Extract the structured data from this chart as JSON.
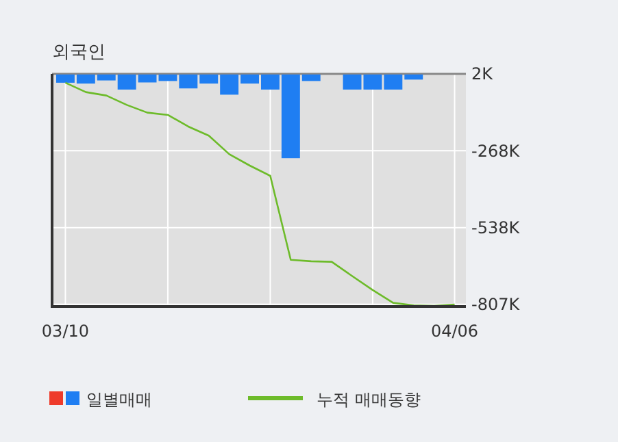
{
  "chart_data": {
    "type": "bar",
    "title": "외국인",
    "categories": [
      "03/10",
      null,
      null,
      null,
      null,
      null,
      null,
      null,
      null,
      null,
      null,
      null,
      null,
      null,
      null,
      null,
      null,
      null,
      null,
      "04/06"
    ],
    "series": [
      {
        "name": "일별매매",
        "color": "#1f7ef2",
        "values": [
          -29,
          -32,
          -21,
          -53,
          -28,
          -23,
          -49,
          -32,
          -71,
          -32,
          -53,
          -294,
          -23,
          0,
          -53,
          -53,
          -53,
          -18,
          0,
          0
        ]
      },
      {
        "name": "누적 매매동향",
        "type": "line",
        "color": "#6dbb2a",
        "values": [
          -29,
          -62,
          -74,
          -107,
          -134,
          -142,
          -183,
          -215,
          -280,
          -320,
          -356,
          -651,
          -656,
          -658,
          -708,
          -757,
          -802,
          -811,
          -813,
          -808
        ]
      }
    ],
    "ylim": [
      -815,
      2
    ],
    "yticks": [
      {
        "value": 2,
        "label": "2K"
      },
      {
        "value": -268,
        "label": "-268K"
      },
      {
        "value": -538,
        "label": "-538K"
      },
      {
        "value": -807,
        "label": "-807K"
      }
    ],
    "grid": true,
    "legend": "bottom"
  }
}
